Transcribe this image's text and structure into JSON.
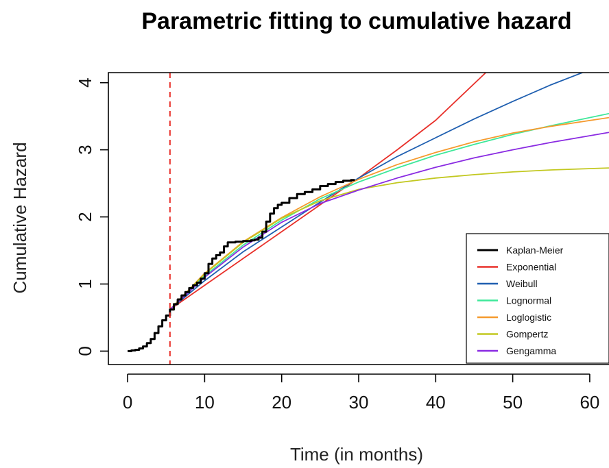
{
  "chart_data": {
    "type": "line",
    "title": "Parametric fitting to cumulative hazard",
    "xlabel": "Time (in months)",
    "ylabel": "Cumulative Hazard",
    "xlim": [
      -2.5,
      62.5
    ],
    "ylim": [
      -0.2,
      4.15
    ],
    "xticks": [
      0,
      10,
      20,
      30,
      40,
      50,
      60
    ],
    "yticks": [
      0,
      1,
      2,
      3,
      4
    ],
    "vline": {
      "x": 5.5,
      "color": "#e8302a",
      "style": "dashed"
    },
    "legend_position": "bottom-right",
    "series": [
      {
        "name": "Kaplan-Meier",
        "color": "#000000",
        "step": true,
        "x": [
          0,
          0.5,
          1,
          1.5,
          2,
          2.5,
          3,
          3.5,
          4,
          4.5,
          5,
          5.5,
          6,
          6.5,
          7,
          7.5,
          8,
          8.5,
          9,
          9.5,
          10,
          10.5,
          11,
          11.5,
          12,
          12.5,
          13,
          13.5,
          14,
          14.5,
          15,
          15.5,
          16,
          16.5,
          17,
          17.5,
          18,
          18.5,
          19,
          19.5,
          20,
          21,
          22,
          23,
          24,
          25,
          26,
          27,
          28,
          29,
          29.5
        ],
        "y": [
          0.0,
          0.01,
          0.02,
          0.04,
          0.07,
          0.12,
          0.18,
          0.27,
          0.37,
          0.46,
          0.53,
          0.62,
          0.7,
          0.77,
          0.83,
          0.88,
          0.94,
          0.98,
          1.02,
          1.08,
          1.16,
          1.3,
          1.38,
          1.43,
          1.47,
          1.56,
          1.62,
          1.62,
          1.63,
          1.63,
          1.64,
          1.64,
          1.65,
          1.66,
          1.69,
          1.78,
          1.93,
          2.05,
          2.13,
          2.18,
          2.21,
          2.28,
          2.34,
          2.37,
          2.41,
          2.46,
          2.49,
          2.52,
          2.54,
          2.55,
          2.55
        ]
      },
      {
        "name": "Exponential",
        "color": "#e8302a",
        "x": [
          5.5,
          10,
          15,
          20,
          25,
          30,
          35,
          40,
          46.5
        ],
        "y": [
          0.62,
          0.98,
          1.38,
          1.78,
          2.18,
          2.58,
          3.0,
          3.44,
          4.15
        ]
      },
      {
        "name": "Weibull",
        "color": "#1f5fb0",
        "x": [
          5.5,
          10,
          15,
          20,
          25,
          30,
          35,
          40,
          45,
          50,
          55,
          59.5
        ],
        "y": [
          0.62,
          1.05,
          1.48,
          1.85,
          2.22,
          2.58,
          2.9,
          3.18,
          3.46,
          3.72,
          3.97,
          4.17
        ]
      },
      {
        "name": "Lognormal",
        "color": "#3ee89a",
        "x": [
          5.5,
          10,
          15,
          20,
          25,
          30,
          35,
          40,
          45,
          50,
          55,
          62.5
        ],
        "y": [
          0.62,
          1.12,
          1.58,
          1.95,
          2.27,
          2.52,
          2.73,
          2.92,
          3.08,
          3.23,
          3.36,
          3.54
        ]
      },
      {
        "name": "Loglogistic",
        "color": "#f59a2e",
        "x": [
          5.5,
          10,
          15,
          20,
          25,
          30,
          35,
          40,
          45,
          50,
          55,
          62.5
        ],
        "y": [
          0.62,
          1.16,
          1.63,
          1.99,
          2.3,
          2.56,
          2.78,
          2.96,
          3.12,
          3.25,
          3.35,
          3.48
        ]
      },
      {
        "name": "Gompertz",
        "color": "#c2c820",
        "x": [
          5.5,
          10,
          15,
          20,
          25,
          30,
          35,
          40,
          45,
          50,
          55,
          62.5
        ],
        "y": [
          0.62,
          1.15,
          1.62,
          1.98,
          2.24,
          2.41,
          2.51,
          2.58,
          2.63,
          2.67,
          2.7,
          2.73
        ]
      },
      {
        "name": "Gengamma",
        "color": "#8a2be2",
        "x": [
          5.5,
          10,
          15,
          20,
          25,
          30,
          35,
          40,
          45,
          50,
          55,
          62.5
        ],
        "y": [
          0.62,
          1.1,
          1.55,
          1.92,
          2.2,
          2.4,
          2.58,
          2.74,
          2.88,
          3.0,
          3.11,
          3.26
        ]
      }
    ]
  }
}
